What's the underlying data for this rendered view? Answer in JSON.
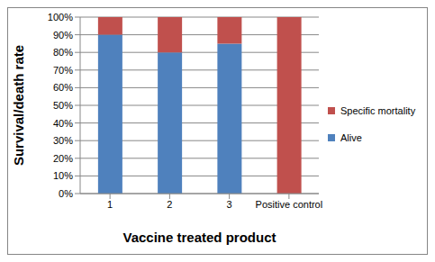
{
  "chart_data": {
    "type": "bar",
    "stacked": true,
    "x_label": "Vaccine treated product",
    "y_label": "Survival/death rate",
    "categories": [
      "1",
      "2",
      "3",
      "Positive control"
    ],
    "series": [
      {
        "name": "Alive",
        "color": "#4f81bd",
        "values": [
          90,
          80,
          85,
          0
        ]
      },
      {
        "name": "Specific mortality",
        "color": "#c0504d",
        "values": [
          10,
          20,
          15,
          100
        ]
      }
    ],
    "ylim": [
      0,
      100
    ],
    "yticks": [
      {
        "value": 0,
        "label": "0%"
      },
      {
        "value": 10,
        "label": "10%"
      },
      {
        "value": 20,
        "label": "20%"
      },
      {
        "value": 30,
        "label": "30%"
      },
      {
        "value": 40,
        "label": "40%"
      },
      {
        "value": 50,
        "label": "50%"
      },
      {
        "value": 60,
        "label": "60%"
      },
      {
        "value": 70,
        "label": "70%"
      },
      {
        "value": 80,
        "label": "80%"
      },
      {
        "value": 90,
        "label": "90%"
      },
      {
        "value": 100,
        "label": "100%"
      }
    ],
    "grid": true,
    "legend": "right"
  }
}
